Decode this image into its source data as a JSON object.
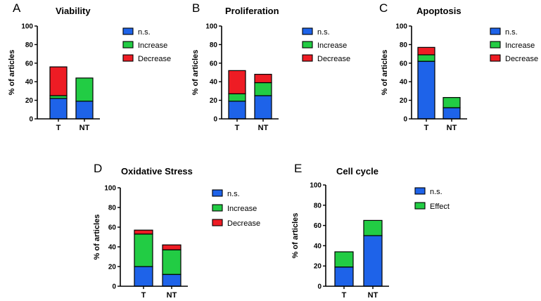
{
  "colors": {
    "ns": "#1e63e9",
    "increase": "#22cc44",
    "decrease": "#ee1c24",
    "effect": "#22cc44",
    "axis": "#000000"
  },
  "chart_data": [
    {
      "letter": "A",
      "title": "Viability",
      "type": "bar",
      "stacked": true,
      "ylabel": "% of articles",
      "ylim": [
        0,
        100
      ],
      "yticks": [
        0,
        20,
        40,
        60,
        80,
        100
      ],
      "categories": [
        "T",
        "NT"
      ],
      "series": [
        {
          "name": "n.s.",
          "color": "#1e63e9",
          "values": [
            22,
            19
          ]
        },
        {
          "name": "Increase",
          "color": "#22cc44",
          "values": [
            3,
            25
          ]
        },
        {
          "name": "Decrease",
          "color": "#ee1c24",
          "values": [
            31,
            0
          ]
        }
      ]
    },
    {
      "letter": "B",
      "title": "Proliferation",
      "type": "bar",
      "stacked": true,
      "ylabel": "% of articles",
      "ylim": [
        0,
        100
      ],
      "yticks": [
        0,
        20,
        40,
        60,
        80,
        100
      ],
      "categories": [
        "T",
        "NT"
      ],
      "series": [
        {
          "name": "n.s.",
          "color": "#1e63e9",
          "values": [
            19,
            25
          ]
        },
        {
          "name": "Increase",
          "color": "#22cc44",
          "values": [
            8,
            14
          ]
        },
        {
          "name": "Decrease",
          "color": "#ee1c24",
          "values": [
            25,
            9
          ]
        }
      ]
    },
    {
      "letter": "C",
      "title": "Apoptosis",
      "type": "bar",
      "stacked": true,
      "ylabel": "% of articles",
      "ylim": [
        0,
        100
      ],
      "yticks": [
        0,
        20,
        40,
        60,
        80,
        100
      ],
      "categories": [
        "T",
        "NT"
      ],
      "series": [
        {
          "name": "n.s.",
          "color": "#1e63e9",
          "values": [
            62,
            12
          ]
        },
        {
          "name": "Increase",
          "color": "#22cc44",
          "values": [
            7,
            11
          ]
        },
        {
          "name": "Decrease",
          "color": "#ee1c24",
          "values": [
            8,
            0
          ]
        }
      ]
    },
    {
      "letter": "D",
      "title": "Oxidative Stress",
      "type": "bar",
      "stacked": true,
      "ylabel": "% of articles",
      "ylim": [
        0,
        100
      ],
      "yticks": [
        0,
        20,
        40,
        60,
        80,
        100
      ],
      "categories": [
        "T",
        "NT"
      ],
      "series": [
        {
          "name": "n.s.",
          "color": "#1e63e9",
          "values": [
            20,
            12
          ]
        },
        {
          "name": "Increase",
          "color": "#22cc44",
          "values": [
            33,
            25
          ]
        },
        {
          "name": "Decrease",
          "color": "#ee1c24",
          "values": [
            4,
            5
          ]
        }
      ]
    },
    {
      "letter": "E",
      "title": "Cell cycle",
      "type": "bar",
      "stacked": true,
      "ylabel": "% of articles",
      "ylim": [
        0,
        100
      ],
      "yticks": [
        0,
        20,
        40,
        60,
        80,
        100
      ],
      "categories": [
        "T",
        "NT"
      ],
      "series": [
        {
          "name": "n.s.",
          "color": "#1e63e9",
          "values": [
            19,
            50
          ]
        },
        {
          "name": "Effect",
          "color": "#22cc44",
          "values": [
            15,
            15
          ]
        }
      ]
    }
  ]
}
